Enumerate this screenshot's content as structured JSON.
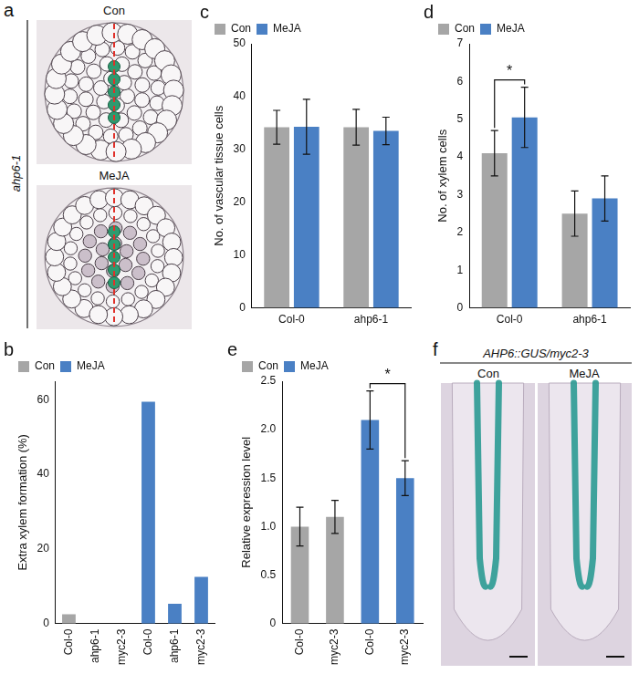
{
  "chart_data": [
    {
      "panel": "b",
      "type": "bar",
      "ylabel": "Extra xylem formation (%)",
      "categories": [
        "Col-0",
        "ahp6-1",
        "myc2-3",
        "Col-0",
        "ahp6-1",
        "myc2-3"
      ],
      "series": [
        {
          "name": "Con",
          "color": "#a6a6a6",
          "values": [
            2.5,
            0,
            0,
            null,
            null,
            null
          ]
        },
        {
          "name": "MeJA",
          "color": "#4a80c4",
          "values": [
            null,
            null,
            null,
            59.5,
            5.3,
            12.5
          ]
        }
      ],
      "ylim": [
        0,
        65
      ],
      "yticks": [
        0,
        20,
        40,
        60
      ],
      "grid": false,
      "legend": "upper left"
    },
    {
      "panel": "c",
      "type": "bar",
      "ylabel": "No. of vascular tissue cells",
      "categories": [
        "Col-0",
        "ahp6-1"
      ],
      "series": [
        {
          "name": "Con",
          "color": "#a6a6a6",
          "values": [
            34.2,
            34.2
          ],
          "errors": [
            3.2,
            3.4
          ]
        },
        {
          "name": "MeJA",
          "color": "#4a80c4",
          "values": [
            34.3,
            33.5
          ],
          "errors": [
            5.2,
            2.6
          ]
        }
      ],
      "ylim": [
        0,
        50
      ],
      "yticks": [
        0,
        10,
        20,
        30,
        40,
        50
      ],
      "grid": false,
      "legend": "upper left"
    },
    {
      "panel": "d",
      "type": "bar",
      "ylabel": "No. of xylem cells",
      "categories": [
        "Col-0",
        "ahp6-1"
      ],
      "series": [
        {
          "name": "Con",
          "color": "#a6a6a6",
          "values": [
            4.1,
            2.5
          ],
          "errors": [
            0.6,
            0.6
          ]
        },
        {
          "name": "MeJA",
          "color": "#4a80c4",
          "values": [
            5.05,
            2.9
          ],
          "errors": [
            0.8,
            0.6
          ]
        }
      ],
      "ylim": [
        0,
        7
      ],
      "yticks": [
        0,
        1,
        2,
        3,
        4,
        5,
        6,
        7
      ],
      "grid": false,
      "legend": "upper left",
      "significance": [
        {
          "text": "*",
          "between": [
            {
              "series": "Con",
              "category": "Col-0"
            },
            {
              "series": "MeJA",
              "category": "Col-0"
            }
          ]
        }
      ]
    },
    {
      "panel": "e",
      "type": "bar",
      "ylabel": "Relative expression level",
      "categories": [
        "Col-0",
        "myc2-3",
        "Col-0",
        "myc2-3"
      ],
      "series": [
        {
          "name": "Con",
          "color": "#a6a6a6",
          "values": [
            1.0,
            1.1,
            null,
            null
          ],
          "errors": [
            0.2,
            0.17,
            null,
            null
          ]
        },
        {
          "name": "MeJA",
          "color": "#4a80c4",
          "values": [
            null,
            null,
            2.1,
            1.5
          ],
          "errors": [
            null,
            null,
            0.3,
            0.18
          ]
        }
      ],
      "ylim": [
        0,
        2.5
      ],
      "yticks": [
        0,
        0.5,
        {
          "value": 1,
          "label": "1.0"
        },
        1.5,
        {
          "value": 2,
          "label": "2.0"
        },
        2.5
      ],
      "grid": false,
      "legend": "upper left",
      "significance": [
        {
          "text": "*",
          "between": [
            {
              "series": "MeJA",
              "category": "Col-0"
            },
            {
              "series": "MeJA",
              "category": "myc2-3"
            }
          ]
        }
      ]
    }
  ],
  "images": [
    {
      "panel": "a",
      "title": "ahp6-1",
      "labels": [
        "Con",
        "MeJA"
      ]
    },
    {
      "panel": "f",
      "title": "AHP6::GUS/myc2-3",
      "labels": [
        "Con",
        "MeJA"
      ]
    }
  ]
}
